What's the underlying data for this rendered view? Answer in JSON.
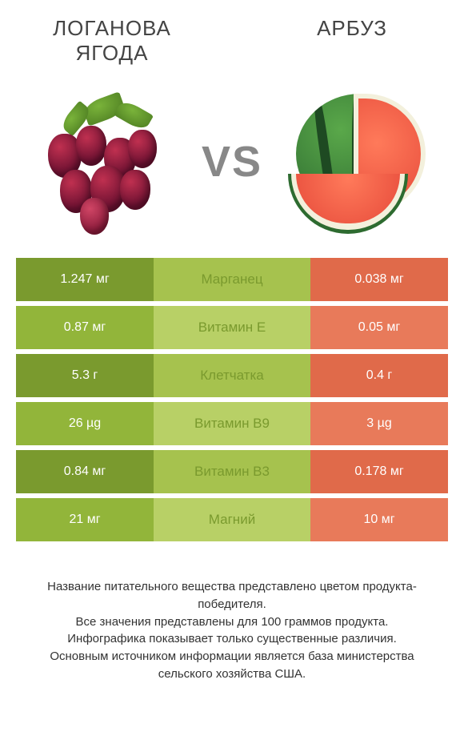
{
  "header": {
    "left_title": "ЛОГАНОВА ЯГОДА",
    "right_title": "АРБУЗ",
    "vs": "VS"
  },
  "colors": {
    "left_dark": "#7a9a2e",
    "left_light": "#92b53a",
    "mid_dark": "#a6c24e",
    "mid_light": "#b8d066",
    "right_dark": "#e06a4a",
    "right_light": "#e87a5a",
    "winner_left": "#7a9a2e",
    "winner_right": "#e06a4a"
  },
  "rows": [
    {
      "nutrient": "Марганец",
      "left": "1.247 мг",
      "right": "0.038 мг",
      "winner": "left"
    },
    {
      "nutrient": "Витамин E",
      "left": "0.87 мг",
      "right": "0.05 мг",
      "winner": "left"
    },
    {
      "nutrient": "Клетчатка",
      "left": "5.3 г",
      "right": "0.4 г",
      "winner": "left"
    },
    {
      "nutrient": "Витамин B9",
      "left": "26 µg",
      "right": "3 µg",
      "winner": "left"
    },
    {
      "nutrient": "Витамин B3",
      "left": "0.84 мг",
      "right": "0.178 мг",
      "winner": "left"
    },
    {
      "nutrient": "Магний",
      "left": "21 мг",
      "right": "10 мг",
      "winner": "left"
    }
  ],
  "footer": {
    "line1": "Название питательного вещества представлено цветом продукта-победителя.",
    "line2": "Все значения представлены для 100 граммов продукта.",
    "line3": "Инфографика показывает только существенные различия.",
    "line4": "Основным источником информации является база министерства сельского хозяйства США."
  }
}
